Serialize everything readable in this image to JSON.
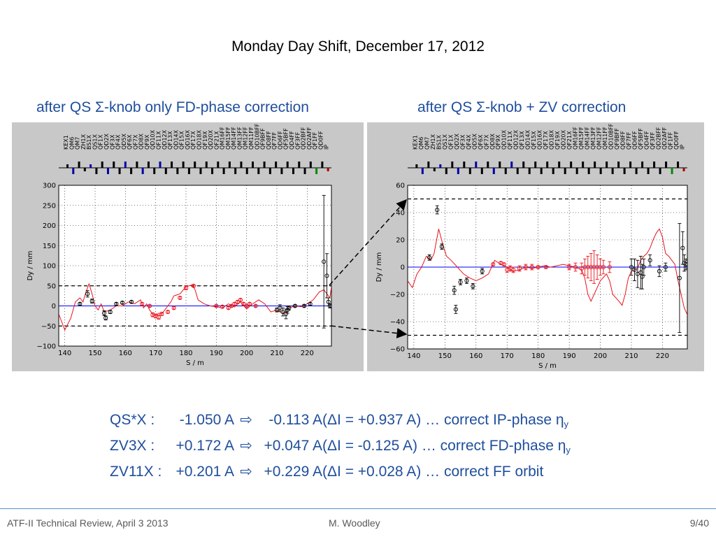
{
  "slide": {
    "title": "Monday Day Shift, December 17, 2012",
    "footer_left": "ATF-II Technical Review, April 3 2013",
    "footer_center": "M. Woodley",
    "footer_right": "9/40"
  },
  "summary": {
    "rows": [
      {
        "name": "QS*X",
        "sep": ":",
        "before": "-1.050 A",
        "arrow": "⇨",
        "after": "-0.113 A",
        "delta": "(ΔI = +0.937 A)",
        "note": "… correct IP-phase η",
        "sub": "y"
      },
      {
        "name": "ZV3X",
        "sep": ":",
        "before": "+0.172 A",
        "arrow": "⇨",
        "after": "+0.047 A",
        "delta": "(ΔI =  -0.125 A)",
        "note": "… correct FD-phase η",
        "sub": "y"
      },
      {
        "name": "ZV11X",
        "sep": ":",
        "before": "+0.201 A",
        "arrow": "⇨",
        "after": "+0.229 A",
        "delta": "(ΔI = +0.028 A)",
        "note": "… correct FF orbit",
        "sub": ""
      }
    ]
  },
  "colors": {
    "text_blue": "#1f4e9c",
    "model": "#e8141c",
    "reference": "#0000ff",
    "panel": "#c8c8c8"
  },
  "magnet_labels": [
    "KEX1",
    "QM6",
    "QM7",
    "ZH1X",
    "BS1X",
    "QS1X",
    "QF1X",
    "QD2X",
    "QF3X",
    "QF4X",
    "QD5X",
    "QF6X",
    "QF7X",
    "QD8X",
    "QF9X",
    "QD10X",
    "QF11X",
    "QD12X",
    "QF13X",
    "QD14X",
    "QF15X",
    "QD16X",
    "QF17X",
    "QD18X",
    "QF19X",
    "QD20X",
    "QF21X",
    "QM16FF",
    "QM15FF",
    "QM14FF",
    "QM13FF",
    "QM12FF",
    "QM11FF",
    "QD10BFF",
    "QF9BFF",
    "QD8FF",
    "QF7FF",
    "QD6FF",
    "QF5BFF",
    "QD4FF",
    "QF3FF",
    "QD2BFF",
    "QD2AFF",
    "QF1FF",
    "QD0FF",
    "IP"
  ],
  "chart_data": [
    {
      "type": "line",
      "title": "after QS Σ-knob only FD-phase correction",
      "xlabel": "S / m",
      "ylabel": "Dy / mm",
      "xlim": [
        138,
        228
      ],
      "ylim": [
        -100,
        300
      ],
      "xticks": [
        140,
        150,
        160,
        170,
        180,
        190,
        200,
        210,
        220
      ],
      "yticks": [
        -100,
        -50,
        0,
        50,
        100,
        150,
        200,
        250,
        300
      ],
      "grid": true,
      "tolerance_lines": [
        50,
        -50
      ],
      "reference_line": 0,
      "series": [
        {
          "kind": "model",
          "x": [
            138,
            140,
            142,
            143.5,
            145,
            146,
            147,
            148,
            149,
            150,
            151,
            152,
            153,
            155,
            157,
            159,
            161,
            163,
            165,
            166,
            167,
            168,
            169,
            170,
            171,
            172,
            173,
            174,
            175,
            176,
            178,
            180,
            182,
            183,
            184,
            186,
            188,
            190,
            192,
            194,
            196,
            198,
            200,
            202,
            204,
            206,
            208,
            210,
            212,
            213,
            214,
            216,
            218,
            220,
            222,
            224,
            225.5,
            226.5,
            227.5,
            228
          ],
          "y": [
            -20,
            -60,
            -30,
            10,
            20,
            10,
            35,
            55,
            30,
            0,
            -10,
            5,
            -15,
            -10,
            0,
            0,
            10,
            5,
            15,
            -5,
            5,
            -10,
            -20,
            -25,
            -18,
            -20,
            -10,
            0,
            10,
            25,
            30,
            48,
            52,
            40,
            15,
            5,
            0,
            -2,
            -5,
            5,
            -3,
            10,
            -8,
            5,
            15,
            5,
            -15,
            -10,
            -20,
            -10,
            -5,
            0,
            -2,
            5,
            15,
            35,
            40,
            30,
            20,
            48
          ]
        },
        {
          "kind": "measured",
          "x": [
            145,
            147.5,
            149,
            153,
            153.5,
            155,
            157,
            159,
            162,
            165.5,
            168,
            169,
            170,
            171,
            172,
            174,
            176,
            178,
            180,
            182.5,
            190,
            192,
            194,
            195,
            196,
            197,
            198,
            199,
            200,
            201,
            203,
            210,
            211,
            212,
            213,
            213.5,
            214,
            216,
            219,
            221,
            225.5,
            226.5,
            227,
            227.5,
            228
          ],
          "y": [
            5,
            30,
            12,
            -18,
            -30,
            -15,
            5,
            8,
            10,
            5,
            0,
            -22,
            -25,
            -28,
            -20,
            -15,
            -5,
            20,
            45,
            50,
            0,
            -2,
            -5,
            0,
            5,
            10,
            15,
            5,
            0,
            5,
            0,
            -10,
            -5,
            -15,
            -20,
            -10,
            -5,
            0,
            0,
            5,
            110,
            75,
            10,
            0,
            0
          ],
          "err": [
            3,
            8,
            5,
            6,
            5,
            4,
            3,
            3,
            3,
            3,
            3,
            5,
            5,
            5,
            4,
            3,
            3,
            3,
            5,
            3,
            3,
            3,
            3,
            3,
            3,
            3,
            3,
            3,
            3,
            3,
            3,
            5,
            8,
            10,
            12,
            8,
            5,
            3,
            3,
            3,
            165,
            55,
            10,
            5,
            5
          ]
        }
      ]
    },
    {
      "type": "line",
      "title": "after QS Σ-knob + ZV correction",
      "xlabel": "S / m",
      "ylabel": "Dy / mm",
      "xlim": [
        138,
        228
      ],
      "ylim": [
        -60,
        60
      ],
      "xticks": [
        140,
        150,
        160,
        170,
        180,
        190,
        200,
        210,
        220
      ],
      "yticks": [
        -60,
        -40,
        -20,
        0,
        20,
        40,
        60
      ],
      "grid": true,
      "tolerance_lines": [
        50,
        -50
      ],
      "reference_line": 0,
      "series": [
        {
          "kind": "model",
          "x": [
            138,
            139.5,
            141,
            142.5,
            144,
            145.5,
            146.5,
            148,
            149.5,
            150.5,
            152,
            154,
            156,
            158,
            160,
            162,
            164,
            166,
            168,
            170,
            172,
            174,
            176,
            178,
            180,
            182,
            184,
            186,
            188,
            190,
            192,
            194,
            195,
            196,
            197,
            198,
            199,
            200,
            202,
            203,
            204,
            206,
            207,
            208,
            209,
            210,
            211,
            212,
            213,
            214,
            215,
            216,
            217,
            218,
            219,
            220,
            221,
            222,
            223,
            224,
            225,
            226,
            227,
            228
          ],
          "y": [
            -10,
            -15,
            -5,
            0,
            8,
            5,
            10,
            28,
            15,
            8,
            5,
            0,
            -5,
            -8,
            -10,
            -8,
            -5,
            5,
            2,
            0,
            -3,
            -2,
            0,
            -1,
            0,
            1,
            0,
            1,
            2,
            1,
            0,
            -2,
            -8,
            -20,
            -25,
            -20,
            -15,
            -10,
            -5,
            -10,
            -20,
            -25,
            -28,
            -20,
            -8,
            -3,
            -2,
            -1,
            5,
            8,
            10,
            14,
            20,
            25,
            28,
            22,
            10,
            8,
            5,
            2,
            -10,
            -20,
            -30,
            -35
          ]
        },
        {
          "kind": "measured",
          "x": [
            145,
            147.5,
            149,
            153,
            153.5,
            155,
            157,
            159,
            162,
            165.5,
            168,
            169,
            170,
            171,
            172,
            174,
            176,
            178,
            180,
            182.5,
            190,
            192,
            194,
            195,
            196,
            197,
            198,
            199,
            200,
            201,
            203,
            210,
            211,
            212,
            213,
            213.5,
            214,
            216,
            219,
            221,
            225.5,
            226.5,
            227,
            227.5,
            228
          ],
          "y": [
            7,
            42,
            15,
            -17,
            -31,
            -11,
            -10,
            -14,
            -3,
            2,
            3,
            2,
            -2,
            -1,
            -2,
            -1,
            0,
            0,
            0,
            0,
            0,
            0,
            -1,
            0,
            0,
            0,
            0,
            0,
            0,
            0,
            0,
            0,
            -2,
            -5,
            -4,
            -7,
            0,
            5,
            -3,
            0,
            -8,
            14,
            3,
            2,
            2
          ],
          "err": [
            2,
            3,
            2,
            3,
            3,
            2,
            2,
            2,
            2,
            1,
            1,
            1,
            2,
            2,
            2,
            2,
            2,
            2,
            1,
            1,
            2,
            3,
            4,
            6,
            8,
            10,
            12,
            9,
            6,
            5,
            4,
            6,
            8,
            10,
            12,
            9,
            6,
            4,
            4,
            3,
            40,
            12,
            6,
            4,
            3
          ]
        }
      ]
    }
  ]
}
